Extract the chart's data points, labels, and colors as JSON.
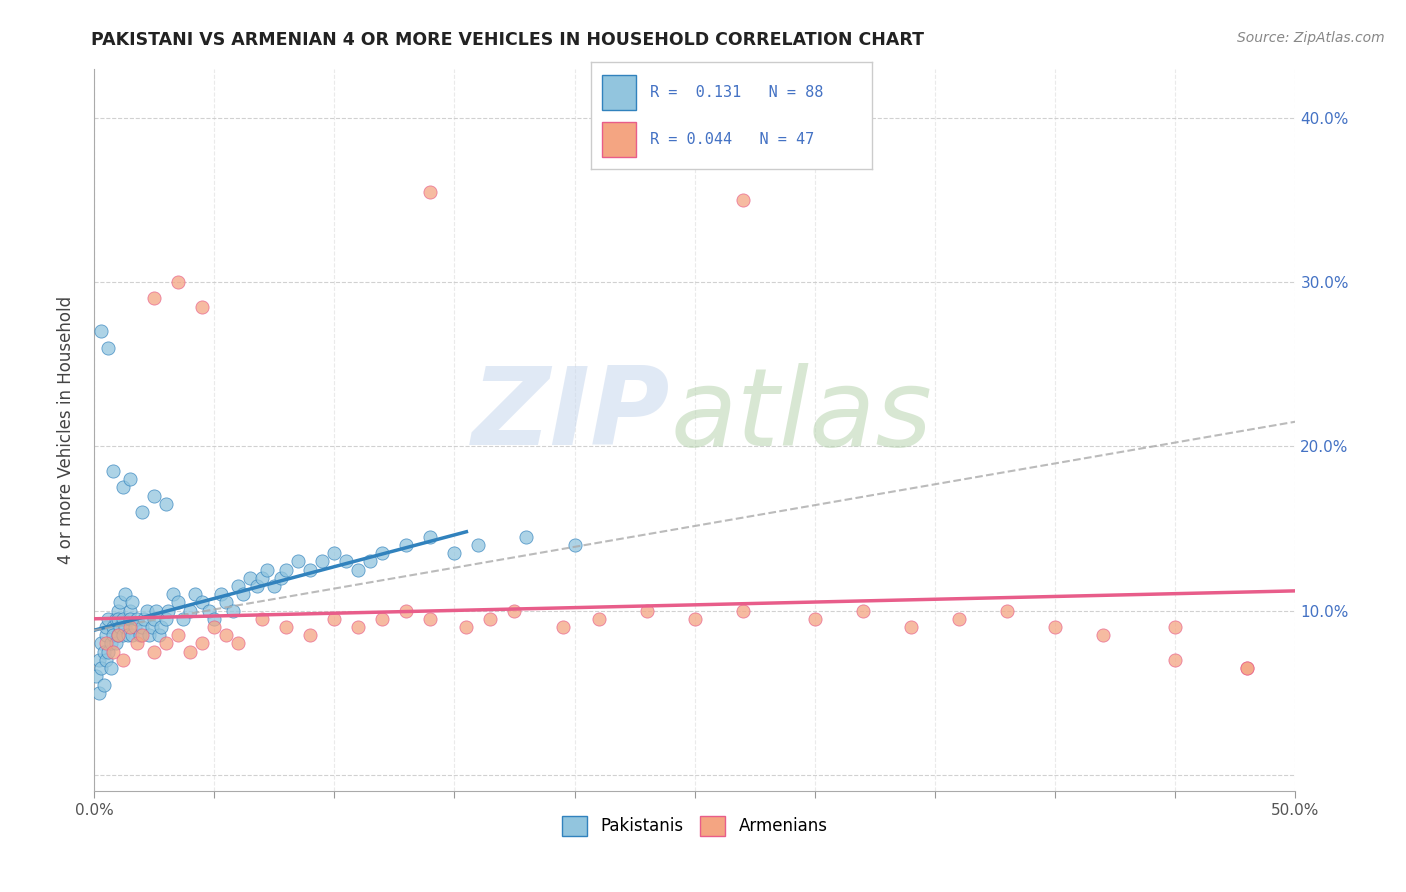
{
  "title": "PAKISTANI VS ARMENIAN 4 OR MORE VEHICLES IN HOUSEHOLD CORRELATION CHART",
  "source": "Source: ZipAtlas.com",
  "ylabel": "4 or more Vehicles in Household",
  "xlim": [
    0.0,
    0.5
  ],
  "ylim": [
    -0.01,
    0.43
  ],
  "blue_color": "#92c5de",
  "pink_color": "#f4a582",
  "blue_line_color": "#3182bd",
  "pink_line_color": "#e85d8a",
  "dash_color": "#aaaaaa",
  "text_color": "#4472c4",
  "right_axis_color": "#4472c4",
  "title_color": "#222222",
  "blue_line_x0": 0.0,
  "blue_line_y0": 0.088,
  "blue_line_x1": 0.155,
  "blue_line_y1": 0.148,
  "dash_line_x0": 0.0,
  "dash_line_y0": 0.088,
  "dash_line_x1": 0.5,
  "dash_line_y1": 0.215,
  "pink_line_x0": 0.0,
  "pink_line_y0": 0.095,
  "pink_line_x1": 0.5,
  "pink_line_y1": 0.112,
  "pak_x": [
    0.001,
    0.002,
    0.002,
    0.003,
    0.003,
    0.004,
    0.004,
    0.005,
    0.005,
    0.005,
    0.006,
    0.006,
    0.007,
    0.007,
    0.008,
    0.008,
    0.009,
    0.009,
    0.01,
    0.01,
    0.01,
    0.011,
    0.011,
    0.012,
    0.012,
    0.013,
    0.013,
    0.014,
    0.015,
    0.015,
    0.016,
    0.016,
    0.017,
    0.018,
    0.019,
    0.02,
    0.021,
    0.022,
    0.023,
    0.024,
    0.025,
    0.026,
    0.027,
    0.028,
    0.03,
    0.031,
    0.033,
    0.035,
    0.037,
    0.04,
    0.042,
    0.045,
    0.048,
    0.05,
    0.053,
    0.055,
    0.058,
    0.06,
    0.062,
    0.065,
    0.068,
    0.07,
    0.072,
    0.075,
    0.078,
    0.08,
    0.085,
    0.09,
    0.095,
    0.1,
    0.105,
    0.11,
    0.115,
    0.12,
    0.13,
    0.14,
    0.15,
    0.16,
    0.18,
    0.2,
    0.003,
    0.006,
    0.008,
    0.012,
    0.015,
    0.02,
    0.025,
    0.03
  ],
  "pak_y": [
    0.06,
    0.07,
    0.05,
    0.08,
    0.065,
    0.075,
    0.055,
    0.085,
    0.09,
    0.07,
    0.095,
    0.075,
    0.08,
    0.065,
    0.09,
    0.085,
    0.095,
    0.08,
    0.1,
    0.085,
    0.095,
    0.09,
    0.105,
    0.085,
    0.095,
    0.09,
    0.11,
    0.085,
    0.1,
    0.095,
    0.105,
    0.085,
    0.09,
    0.095,
    0.085,
    0.09,
    0.095,
    0.1,
    0.085,
    0.09,
    0.095,
    0.1,
    0.085,
    0.09,
    0.095,
    0.1,
    0.11,
    0.105,
    0.095,
    0.1,
    0.11,
    0.105,
    0.1,
    0.095,
    0.11,
    0.105,
    0.1,
    0.115,
    0.11,
    0.12,
    0.115,
    0.12,
    0.125,
    0.115,
    0.12,
    0.125,
    0.13,
    0.125,
    0.13,
    0.135,
    0.13,
    0.125,
    0.13,
    0.135,
    0.14,
    0.145,
    0.135,
    0.14,
    0.145,
    0.14,
    0.27,
    0.26,
    0.185,
    0.175,
    0.18,
    0.16,
    0.17,
    0.165
  ],
  "arm_x": [
    0.005,
    0.008,
    0.01,
    0.012,
    0.015,
    0.018,
    0.02,
    0.025,
    0.03,
    0.035,
    0.04,
    0.045,
    0.05,
    0.055,
    0.06,
    0.07,
    0.08,
    0.09,
    0.1,
    0.11,
    0.12,
    0.13,
    0.14,
    0.155,
    0.165,
    0.175,
    0.195,
    0.21,
    0.23,
    0.25,
    0.27,
    0.3,
    0.32,
    0.34,
    0.36,
    0.38,
    0.4,
    0.42,
    0.45,
    0.48,
    0.025,
    0.035,
    0.045,
    0.14,
    0.27,
    0.45,
    0.48
  ],
  "arm_y": [
    0.08,
    0.075,
    0.085,
    0.07,
    0.09,
    0.08,
    0.085,
    0.075,
    0.08,
    0.085,
    0.075,
    0.08,
    0.09,
    0.085,
    0.08,
    0.095,
    0.09,
    0.085,
    0.095,
    0.09,
    0.095,
    0.1,
    0.095,
    0.09,
    0.095,
    0.1,
    0.09,
    0.095,
    0.1,
    0.095,
    0.1,
    0.095,
    0.1,
    0.09,
    0.095,
    0.1,
    0.09,
    0.085,
    0.09,
    0.065,
    0.29,
    0.3,
    0.285,
    0.355,
    0.35,
    0.07,
    0.065
  ]
}
